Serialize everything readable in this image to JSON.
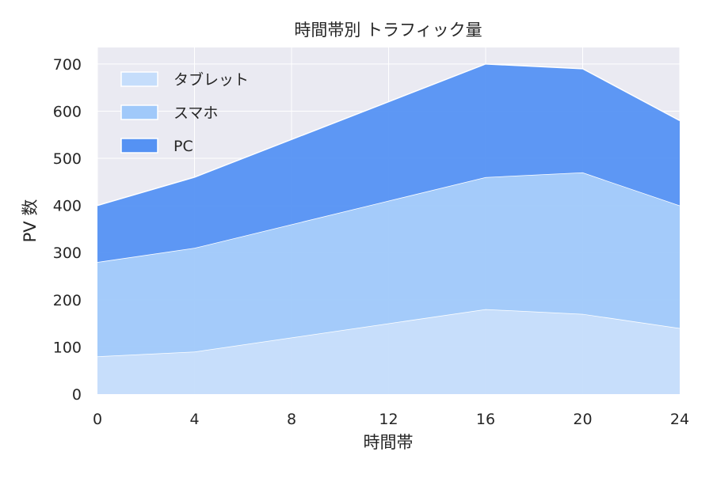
{
  "chart_data": {
    "type": "area",
    "stacked": true,
    "title": "時間帯別 トラフィック量",
    "xlabel": "時間帯",
    "ylabel": "PV 数",
    "x": [
      0,
      4,
      8,
      12,
      16,
      20,
      24
    ],
    "xticks": [
      0,
      4,
      8,
      12,
      16,
      20,
      24
    ],
    "yticks": [
      0,
      100,
      200,
      300,
      400,
      500,
      600,
      700
    ],
    "xlim": [
      0,
      24
    ],
    "ylim": [
      0,
      735
    ],
    "grid": true,
    "legend_position": "top-left",
    "background": "#eaeaf2",
    "series": [
      {
        "name": "タブレット",
        "values": [
          80,
          90,
          120,
          150,
          180,
          170,
          140
        ],
        "color": "#c5ddfb"
      },
      {
        "name": "スマホ",
        "values": [
          200,
          220,
          240,
          260,
          280,
          300,
          260
        ],
        "color": "#a0c9fa"
      },
      {
        "name": "PC",
        "values": [
          120,
          150,
          180,
          210,
          240,
          220,
          180
        ],
        "color": "#5592f3"
      }
    ]
  }
}
